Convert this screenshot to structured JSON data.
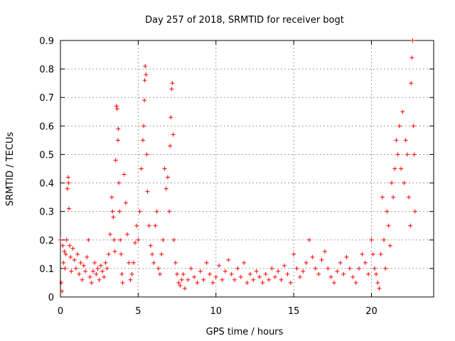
{
  "chart_data": {
    "type": "scatter",
    "title": "Day 257 of 2018, SRMTID for receiver bogt",
    "xlabel": "GPS time / hours",
    "ylabel": "SRMTID / TECUs",
    "xlim": [
      0,
      24
    ],
    "ylim": [
      0,
      0.9
    ],
    "grid": true,
    "x_ticks": [
      0,
      5,
      10,
      15,
      20
    ],
    "x_tick_labels": [
      "0",
      "5",
      "10",
      "15",
      "20"
    ],
    "y_ticks": [
      0,
      0.1,
      0.2,
      0.3,
      0.4,
      0.5,
      0.6,
      0.7,
      0.8,
      0.9
    ],
    "y_tick_labels": [
      "0",
      "0.1",
      "0.2",
      "0.3",
      "0.4",
      "0.5",
      "0.6",
      "0.7",
      "0.8",
      "0.9"
    ],
    "marker": "+",
    "series": [
      {
        "name": "SRMTID",
        "color": "#ff0000",
        "points": [
          [
            0.0,
            0.2
          ],
          [
            0.05,
            0.05
          ],
          [
            0.1,
            0.02
          ],
          [
            0.15,
            0.18
          ],
          [
            0.2,
            0.12
          ],
          [
            0.25,
            0.16
          ],
          [
            0.3,
            0.1
          ],
          [
            0.35,
            0.15
          ],
          [
            0.4,
            0.2
          ],
          [
            0.45,
            0.38
          ],
          [
            0.5,
            0.42
          ],
          [
            0.52,
            0.4
          ],
          [
            0.55,
            0.31
          ],
          [
            0.6,
            0.18
          ],
          [
            0.65,
            0.14
          ],
          [
            0.7,
            0.09
          ],
          [
            0.8,
            0.17
          ],
          [
            0.9,
            0.13
          ],
          [
            1.0,
            0.1
          ],
          [
            1.1,
            0.15
          ],
          [
            1.2,
            0.08
          ],
          [
            1.3,
            0.12
          ],
          [
            1.4,
            0.06
          ],
          [
            1.5,
            0.11
          ],
          [
            1.6,
            0.09
          ],
          [
            1.7,
            0.14
          ],
          [
            1.8,
            0.2
          ],
          [
            1.9,
            0.07
          ],
          [
            2.0,
            0.05
          ],
          [
            2.1,
            0.09
          ],
          [
            2.2,
            0.12
          ],
          [
            2.3,
            0.08
          ],
          [
            2.4,
            0.1
          ],
          [
            2.5,
            0.06
          ],
          [
            2.6,
            0.11
          ],
          [
            2.7,
            0.09
          ],
          [
            2.8,
            0.07
          ],
          [
            2.9,
            0.12
          ],
          [
            3.0,
            0.1
          ],
          [
            3.1,
            0.15
          ],
          [
            3.2,
            0.22
          ],
          [
            3.3,
            0.35
          ],
          [
            3.35,
            0.3
          ],
          [
            3.4,
            0.28
          ],
          [
            3.45,
            0.2
          ],
          [
            3.5,
            0.16
          ],
          [
            3.55,
            0.48
          ],
          [
            3.6,
            0.67
          ],
          [
            3.65,
            0.66
          ],
          [
            3.7,
            0.55
          ],
          [
            3.72,
            0.59
          ],
          [
            3.75,
            0.4
          ],
          [
            3.8,
            0.3
          ],
          [
            3.85,
            0.2
          ],
          [
            3.9,
            0.15
          ],
          [
            3.95,
            0.08
          ],
          [
            4.0,
            0.05
          ],
          [
            4.1,
            0.43
          ],
          [
            4.2,
            0.33
          ],
          [
            4.3,
            0.22
          ],
          [
            4.4,
            0.12
          ],
          [
            4.5,
            0.06
          ],
          [
            4.6,
            0.08
          ],
          [
            4.7,
            0.12
          ],
          [
            4.8,
            0.19
          ],
          [
            4.9,
            0.25
          ],
          [
            5.0,
            0.2
          ],
          [
            5.1,
            0.3
          ],
          [
            5.2,
            0.45
          ],
          [
            5.3,
            0.55
          ],
          [
            5.35,
            0.6
          ],
          [
            5.4,
            0.69
          ],
          [
            5.42,
            0.76
          ],
          [
            5.45,
            0.81
          ],
          [
            5.5,
            0.78
          ],
          [
            5.55,
            0.5
          ],
          [
            5.6,
            0.37
          ],
          [
            5.7,
            0.25
          ],
          [
            5.8,
            0.18
          ],
          [
            5.9,
            0.15
          ],
          [
            6.0,
            0.12
          ],
          [
            6.1,
            0.25
          ],
          [
            6.2,
            0.3
          ],
          [
            6.3,
            0.1
          ],
          [
            6.4,
            0.08
          ],
          [
            6.5,
            0.15
          ],
          [
            6.6,
            0.2
          ],
          [
            6.7,
            0.45
          ],
          [
            6.8,
            0.38
          ],
          [
            6.9,
            0.42
          ],
          [
            7.0,
            0.3
          ],
          [
            7.05,
            0.53
          ],
          [
            7.1,
            0.63
          ],
          [
            7.15,
            0.73
          ],
          [
            7.2,
            0.75
          ],
          [
            7.25,
            0.57
          ],
          [
            7.3,
            0.2
          ],
          [
            7.4,
            0.12
          ],
          [
            7.5,
            0.08
          ],
          [
            7.6,
            0.05
          ],
          [
            7.7,
            0.04
          ],
          [
            7.8,
            0.06
          ],
          [
            7.9,
            0.08
          ],
          [
            8.0,
            0.03
          ],
          [
            8.2,
            0.06
          ],
          [
            8.4,
            0.1
          ],
          [
            8.6,
            0.07
          ],
          [
            8.8,
            0.05
          ],
          [
            9.0,
            0.09
          ],
          [
            9.2,
            0.06
          ],
          [
            9.4,
            0.12
          ],
          [
            9.6,
            0.08
          ],
          [
            9.8,
            0.05
          ],
          [
            10.0,
            0.07
          ],
          [
            10.2,
            0.11
          ],
          [
            10.4,
            0.06
          ],
          [
            10.6,
            0.09
          ],
          [
            10.8,
            0.13
          ],
          [
            11.0,
            0.08
          ],
          [
            11.2,
            0.06
          ],
          [
            11.4,
            0.1
          ],
          [
            11.6,
            0.07
          ],
          [
            11.8,
            0.12
          ],
          [
            12.0,
            0.05
          ],
          [
            12.2,
            0.08
          ],
          [
            12.4,
            0.06
          ],
          [
            12.6,
            0.09
          ],
          [
            12.8,
            0.07
          ],
          [
            13.0,
            0.05
          ],
          [
            13.2,
            0.08
          ],
          [
            13.4,
            0.06
          ],
          [
            13.6,
            0.1
          ],
          [
            13.8,
            0.07
          ],
          [
            14.0,
            0.09
          ],
          [
            14.2,
            0.06
          ],
          [
            14.4,
            0.11
          ],
          [
            14.6,
            0.08
          ],
          [
            14.8,
            0.05
          ],
          [
            15.0,
            0.15
          ],
          [
            15.2,
            0.1
          ],
          [
            15.4,
            0.07
          ],
          [
            15.6,
            0.09
          ],
          [
            15.8,
            0.12
          ],
          [
            16.0,
            0.2
          ],
          [
            16.2,
            0.14
          ],
          [
            16.4,
            0.1
          ],
          [
            16.6,
            0.08
          ],
          [
            16.8,
            0.13
          ],
          [
            17.0,
            0.16
          ],
          [
            17.2,
            0.1
          ],
          [
            17.4,
            0.07
          ],
          [
            17.6,
            0.05
          ],
          [
            17.8,
            0.09
          ],
          [
            18.0,
            0.12
          ],
          [
            18.2,
            0.08
          ],
          [
            18.4,
            0.14
          ],
          [
            18.6,
            0.1
          ],
          [
            18.8,
            0.07
          ],
          [
            19.0,
            0.05
          ],
          [
            19.2,
            0.1
          ],
          [
            19.4,
            0.15
          ],
          [
            19.6,
            0.12
          ],
          [
            19.8,
            0.08
          ],
          [
            20.0,
            0.2
          ],
          [
            20.1,
            0.15
          ],
          [
            20.2,
            0.1
          ],
          [
            20.3,
            0.08
          ],
          [
            20.4,
            0.05
          ],
          [
            20.5,
            0.03
          ],
          [
            20.6,
            0.15
          ],
          [
            20.7,
            0.35
          ],
          [
            20.8,
            0.2
          ],
          [
            20.9,
            0.1
          ],
          [
            21.0,
            0.3
          ],
          [
            21.1,
            0.25
          ],
          [
            21.2,
            0.18
          ],
          [
            21.3,
            0.4
          ],
          [
            21.4,
            0.35
          ],
          [
            21.5,
            0.45
          ],
          [
            21.6,
            0.55
          ],
          [
            21.7,
            0.5
          ],
          [
            21.8,
            0.6
          ],
          [
            21.9,
            0.45
          ],
          [
            22.0,
            0.65
          ],
          [
            22.1,
            0.4
          ],
          [
            22.2,
            0.55
          ],
          [
            22.3,
            0.5
          ],
          [
            22.4,
            0.35
          ],
          [
            22.5,
            0.25
          ],
          [
            22.55,
            0.75
          ],
          [
            22.6,
            0.84
          ],
          [
            22.65,
            0.9
          ],
          [
            22.7,
            0.6
          ],
          [
            22.75,
            0.5
          ],
          [
            22.8,
            0.3
          ]
        ]
      }
    ]
  }
}
